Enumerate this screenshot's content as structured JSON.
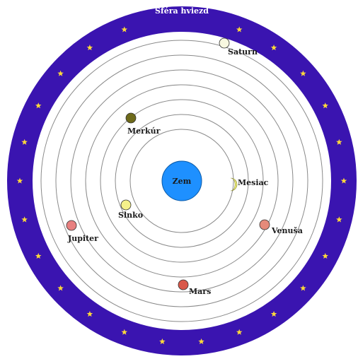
{
  "diagram": {
    "title": "Sféra hviezd",
    "center": {
      "label": "Zem",
      "color": "#1e90ff"
    },
    "star_ring_color": "#3a14b0",
    "star_color": "#ffd93a",
    "orbit_color": "#8a8a8a",
    "bodies": [
      {
        "key": "mesiac",
        "label": "Mesiac",
        "color": "#eaea7a",
        "shape": "crescent"
      },
      {
        "key": "merkur",
        "label": "Merkúr",
        "color": "#6e6a1a",
        "shape": "disc"
      },
      {
        "key": "venusa",
        "label": "Venuša",
        "color": "#e58a7a",
        "shape": "disc"
      },
      {
        "key": "slnko",
        "label": "Slnko",
        "color": "#f4f08a",
        "shape": "disc"
      },
      {
        "key": "mars",
        "label": "Mars",
        "color": "#d9584a",
        "shape": "disc"
      },
      {
        "key": "jupiter",
        "label": "Jupiter",
        "color": "#e88080",
        "shape": "disc"
      },
      {
        "key": "saturn",
        "label": "Saturn",
        "color": "#f8f8e0",
        "shape": "disc"
      }
    ]
  }
}
